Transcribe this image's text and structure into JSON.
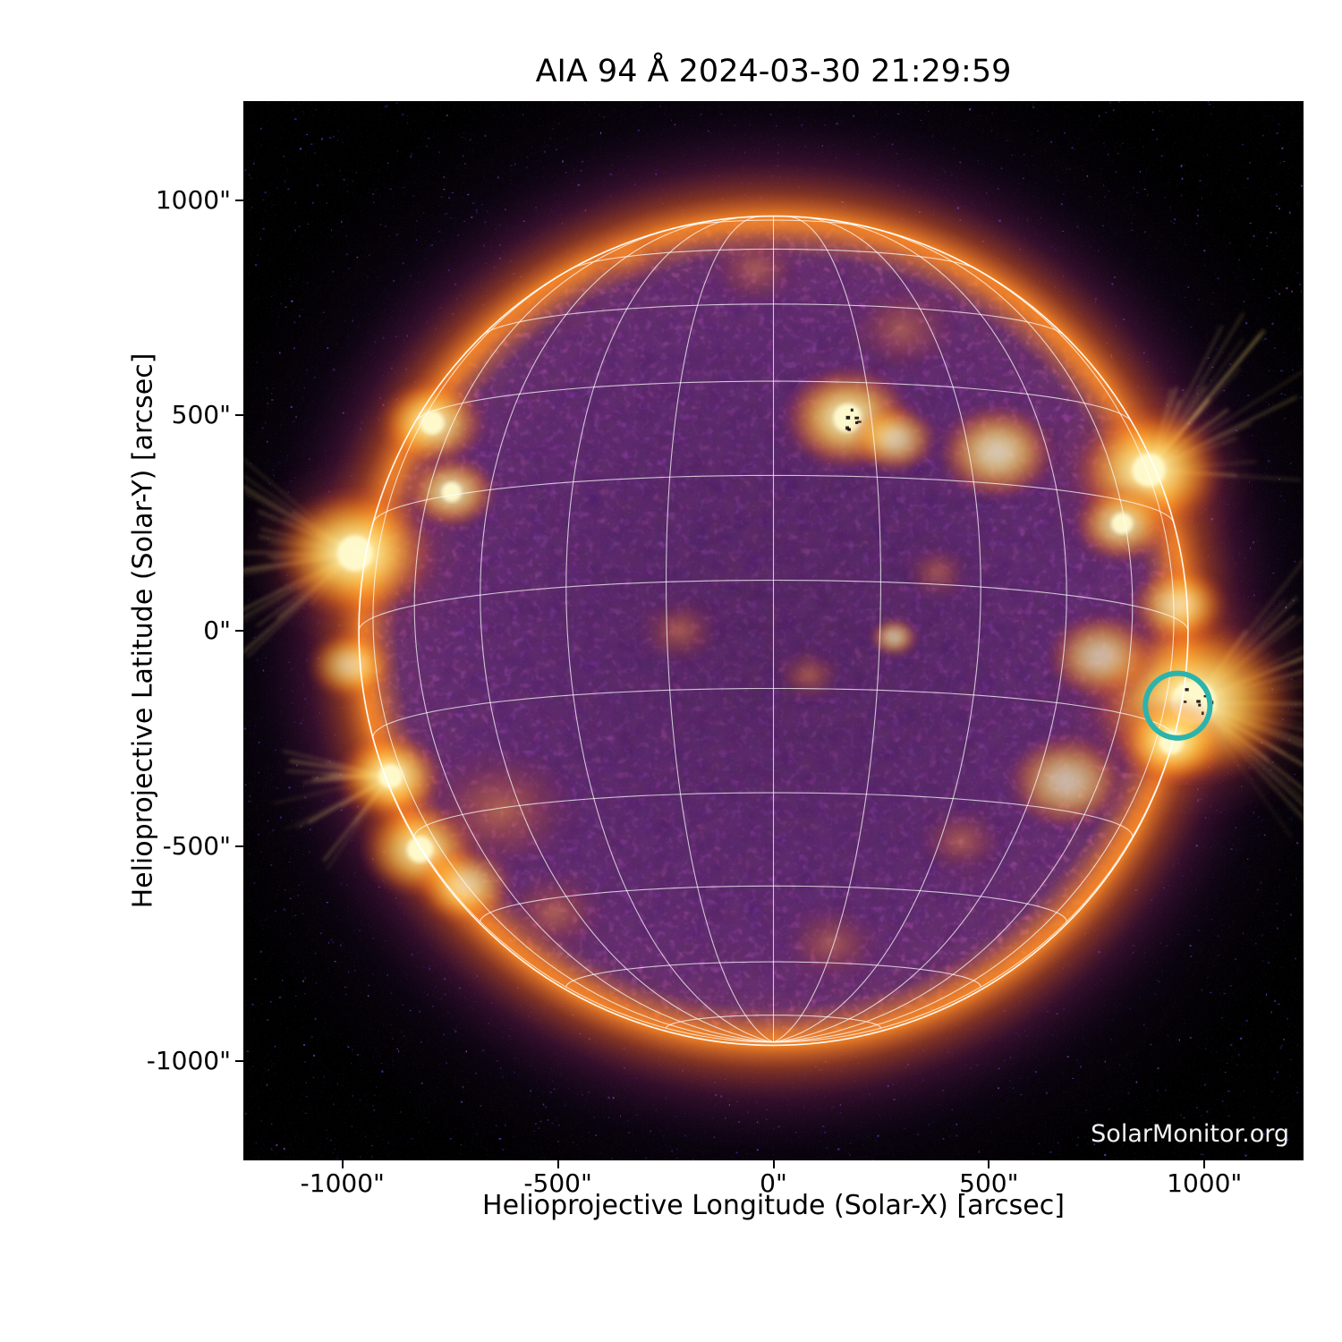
{
  "title": "AIA 94 Å 2024-03-30 21:29:59",
  "watermark": "SolarMonitor.org",
  "axes": {
    "xlabel": "Helioprojective Longitude (Solar-X) [arcsec]",
    "ylabel": "Helioprojective Latitude (Solar-Y) [arcsec]",
    "x_ticks": [
      {
        "value": -1000,
        "label": "-1000\""
      },
      {
        "value": -500,
        "label": "-500\""
      },
      {
        "value": 0,
        "label": "0\""
      },
      {
        "value": 500,
        "label": "500\""
      },
      {
        "value": 1000,
        "label": "1000\""
      }
    ],
    "y_ticks": [
      {
        "value": 1000,
        "label": "1000\""
      },
      {
        "value": 500,
        "label": "500\""
      },
      {
        "value": 0,
        "label": "0\""
      },
      {
        "value": -500,
        "label": "-500\""
      },
      {
        "value": -1000,
        "label": "-1000\""
      }
    ]
  },
  "colors": {
    "page_background": "#ffffff",
    "plot_background": "#000000",
    "grid": "#ffffff",
    "limb": "#ffffff",
    "annotation": "#2cb4ac",
    "text": "#000000",
    "watermark": "#f2f2f2"
  },
  "chart_data": {
    "type": "heatmap",
    "title": "AIA 94 Å 2024-03-30 21:29:59",
    "instrument": "AIA",
    "wavelength": "94 Å",
    "observed": "2024-03-30 21:29:59",
    "source_watermark": "SolarMonitor.org",
    "xlabel": "Helioprojective Longitude (Solar-X) [arcsec]",
    "ylabel": "Helioprojective Latitude (Solar-Y) [arcsec]",
    "xlim": [
      -1230,
      1230
    ],
    "ylim": [
      -1230,
      1230
    ],
    "solar_radius_arcsec": 962,
    "grid_overlay": {
      "spacing_deg": 15,
      "b0_deg": -7,
      "lon_range": [
        -90,
        90
      ],
      "lat_range": [
        -75,
        75
      ]
    },
    "annotation": {
      "shape": "circle",
      "x_arcsec": 938,
      "y_arcsec": -174,
      "radius_arcsec": 75,
      "color": "#2cb4ac"
    },
    "active_regions": [
      {
        "x": -971,
        "y": 180,
        "s": 75,
        "i": 1.0,
        "halo": true,
        "streaks": {
          "dir": 180,
          "spread": 100,
          "n": 26,
          "len": 180
        }
      },
      {
        "x": -980,
        "y": -80,
        "s": 40,
        "i": 0.6
      },
      {
        "x": -792,
        "y": 483,
        "s": 50,
        "i": 0.85
      },
      {
        "x": -747,
        "y": 322,
        "s": 42,
        "i": 0.8
      },
      {
        "x": -888,
        "y": -338,
        "s": 50,
        "i": 0.95,
        "streaks": {
          "dir": 205,
          "spread": 80,
          "n": 18,
          "len": 130
        }
      },
      {
        "x": -820,
        "y": -508,
        "s": 55,
        "i": 0.8
      },
      {
        "x": -716,
        "y": -591,
        "s": 45,
        "i": 0.65
      },
      {
        "x": -633,
        "y": -415,
        "s": 70,
        "i": 0.5
      },
      {
        "x": 172,
        "y": 494,
        "s": 60,
        "i": 0.95,
        "specks": true
      },
      {
        "x": 280,
        "y": 446,
        "s": 40,
        "i": 0.7
      },
      {
        "x": 519,
        "y": 415,
        "s": 55,
        "i": 0.75
      },
      {
        "x": 871,
        "y": 373,
        "s": 70,
        "i": 0.95,
        "halo": true,
        "streaks": {
          "dir": 35,
          "spread": 85,
          "n": 24,
          "len": 200
        }
      },
      {
        "x": 809,
        "y": 249,
        "s": 45,
        "i": 0.8
      },
      {
        "x": 975,
        "y": -166,
        "s": 95,
        "i": 1.0,
        "halo": true,
        "specks": true,
        "streaks": {
          "dir": 0,
          "spread": 110,
          "n": 30,
          "len": 230
        }
      },
      {
        "x": 923,
        "y": -259,
        "s": 50,
        "i": 0.9
      },
      {
        "x": 940,
        "y": 60,
        "s": 45,
        "i": 0.7
      },
      {
        "x": -218,
        "y": 0,
        "s": 38,
        "i": 0.45
      },
      {
        "x": 83,
        "y": -104,
        "s": 30,
        "i": 0.45
      },
      {
        "x": 280,
        "y": -15,
        "s": 22,
        "i": 0.6
      },
      {
        "x": 380,
        "y": 135,
        "s": 30,
        "i": 0.4
      },
      {
        "x": -41,
        "y": 840,
        "s": 40,
        "i": 0.35
      },
      {
        "x": -342,
        "y": 871,
        "s": 35,
        "i": 0.3
      },
      {
        "x": 436,
        "y": -488,
        "s": 40,
        "i": 0.4
      },
      {
        "x": 135,
        "y": -726,
        "s": 45,
        "i": 0.35
      },
      {
        "x": -508,
        "y": -653,
        "s": 45,
        "i": 0.45
      },
      {
        "x": 680,
        "y": -350,
        "s": 55,
        "i": 0.6
      },
      {
        "x": 300,
        "y": 700,
        "s": 50,
        "i": 0.35
      },
      {
        "x": 760,
        "y": -60,
        "s": 50,
        "i": 0.6
      }
    ]
  }
}
